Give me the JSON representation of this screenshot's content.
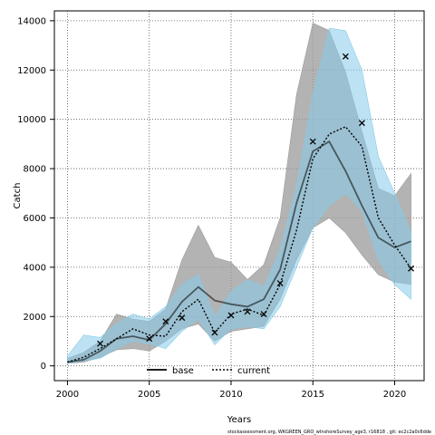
{
  "chart_data": {
    "type": "line",
    "title": "",
    "xlabel": "Years",
    "ylabel": "Catch",
    "xlim": [
      1999.2,
      2021.8
    ],
    "ylim": [
      -600,
      14400
    ],
    "x_ticks": [
      2000,
      2005,
      2010,
      2015,
      2020
    ],
    "y_ticks": [
      0,
      2000,
      4000,
      6000,
      8000,
      10000,
      12000,
      14000
    ],
    "grid": true,
    "legend_position": "bottom-center",
    "colors": {
      "base_line": "#000000",
      "base_band": "#9a9a9a",
      "current_line": "#000000",
      "current_band": "#87cbea",
      "observed": "#000000",
      "grid": "#555555"
    },
    "x": [
      2000,
      2001,
      2002,
      2003,
      2004,
      2005,
      2006,
      2007,
      2008,
      2009,
      2010,
      2011,
      2012,
      2013,
      2014,
      2015,
      2016,
      2017,
      2018,
      2019,
      2020,
      2021
    ],
    "series": [
      {
        "name": "base",
        "style": "solid",
        "values": [
          150,
          250,
          600,
          1100,
          1200,
          1050,
          1700,
          2600,
          3200,
          2650,
          2500,
          2400,
          2700,
          3900,
          6600,
          8700,
          9100,
          7900,
          6500,
          5200,
          4800,
          5050
        ],
        "lower": [
          100,
          150,
          350,
          650,
          700,
          600,
          1000,
          1500,
          1700,
          1000,
          1400,
          1500,
          1600,
          2700,
          4300,
          5600,
          6000,
          5400,
          4500,
          3700,
          3400,
          3300
        ],
        "upper": [
          300,
          550,
          1000,
          2100,
          1900,
          1800,
          2300,
          4300,
          5700,
          4400,
          4200,
          3500,
          4100,
          6000,
          11000,
          13900,
          13600,
          11900,
          9500,
          7200,
          6900,
          7800
        ]
      },
      {
        "name": "current",
        "style": "dotted",
        "values": [
          150,
          350,
          700,
          1100,
          1500,
          1250,
          1200,
          2200,
          2700,
          1350,
          2100,
          2300,
          2050,
          3300,
          5500,
          8400,
          9400,
          9700,
          8900,
          6000,
          4900,
          3950
        ],
        "lower": [
          100,
          200,
          300,
          700,
          1000,
          900,
          700,
          1400,
          1900,
          850,
          1500,
          1600,
          1500,
          2400,
          4000,
          5600,
          6500,
          7000,
          6300,
          4300,
          3300,
          2700
        ],
        "upper": [
          400,
          1250,
          1150,
          1700,
          2100,
          1900,
          2400,
          3300,
          3700,
          2000,
          3000,
          3500,
          3200,
          4700,
          7300,
          11000,
          13700,
          13600,
          12000,
          8500,
          7000,
          5400
        ]
      }
    ],
    "observed": {
      "x": [
        2002,
        2005,
        2006,
        2007,
        2009,
        2010,
        2011,
        2012,
        2013,
        2015,
        2017,
        2018,
        2021
      ],
      "y": [
        900,
        1100,
        1800,
        1950,
        1350,
        2050,
        2200,
        2100,
        3350,
        9100,
        12550,
        9850,
        3950
      ]
    },
    "legend": {
      "entries": [
        "base",
        "current"
      ]
    },
    "footnote": "stockassessment.org, WKGREEN_GRO_wInshoreSurvey_age3, r16818 , git: ec2c2a0c6dde"
  }
}
